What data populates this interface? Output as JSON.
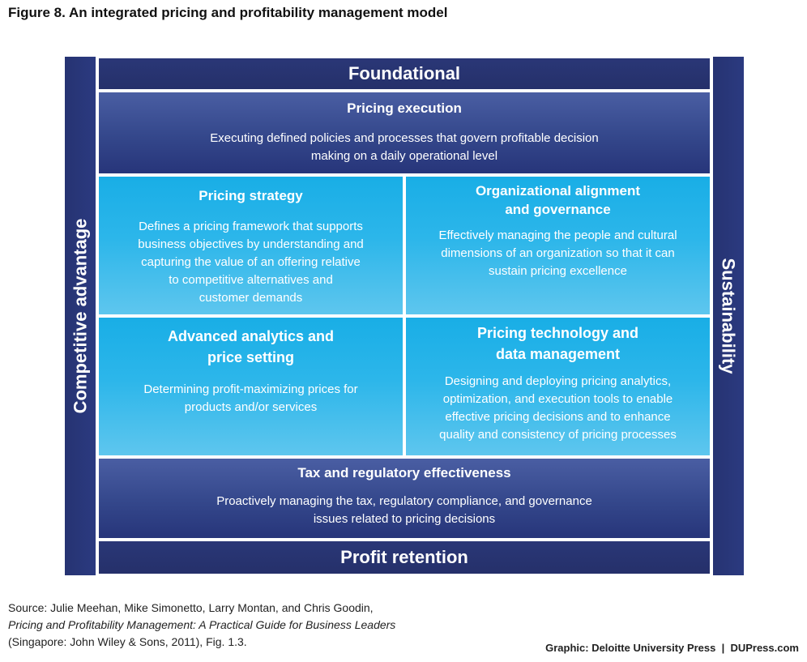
{
  "title": "Figure 8. An integrated pricing and profitability management model",
  "sides": {
    "left": "Competitive advantage",
    "right": "Sustainability"
  },
  "top_bar": "Foundational",
  "bottom_bar": "Profit retention",
  "pricing_execution": {
    "heading": "Pricing execution",
    "text": "Executing defined policies and processes that govern profitable decision\nmaking on a daily operational level"
  },
  "pricing_strategy": {
    "heading": "Pricing strategy",
    "text": "Defines a pricing framework that supports\nbusiness objectives by understanding and\ncapturing the value of an offering relative\nto competitive alternatives and\ncustomer demands"
  },
  "org_alignment": {
    "heading": "Organizational alignment\nand governance",
    "text": "Effectively managing the people and cultural\ndimensions of an organization so that it can\nsustain pricing excellence"
  },
  "analytics": {
    "heading": "Advanced analytics and\nprice setting",
    "text": "Determining profit-maximizing prices for\nproducts and/or services"
  },
  "technology": {
    "heading": "Pricing technology and\ndata management",
    "text": "Designing and deploying pricing analytics,\noptimization, and execution tools to enable\neffective pricing decisions and to enhance\nquality and consistency of pricing processes"
  },
  "tax": {
    "heading": "Tax and regulatory effectiveness",
    "text": "Proactively managing the tax, regulatory compliance, and governance\nissues related to pricing decisions"
  },
  "source": {
    "line1": "Source: Julie Meehan, Mike Simonetto, Larry Montan, and Chris Goodin,",
    "line2": "Pricing and Profitability Management: A Practical Guide for Business Leaders",
    "line3": "(Singapore: John Wiley & Sons, 2011), Fig. 1.3."
  },
  "credit": "Graphic: Deloitte University Press  |  DUPress.com",
  "colors": {
    "dark_navy": "#263372",
    "mid_blue": "#34478b",
    "cyan": "#19aee6"
  }
}
